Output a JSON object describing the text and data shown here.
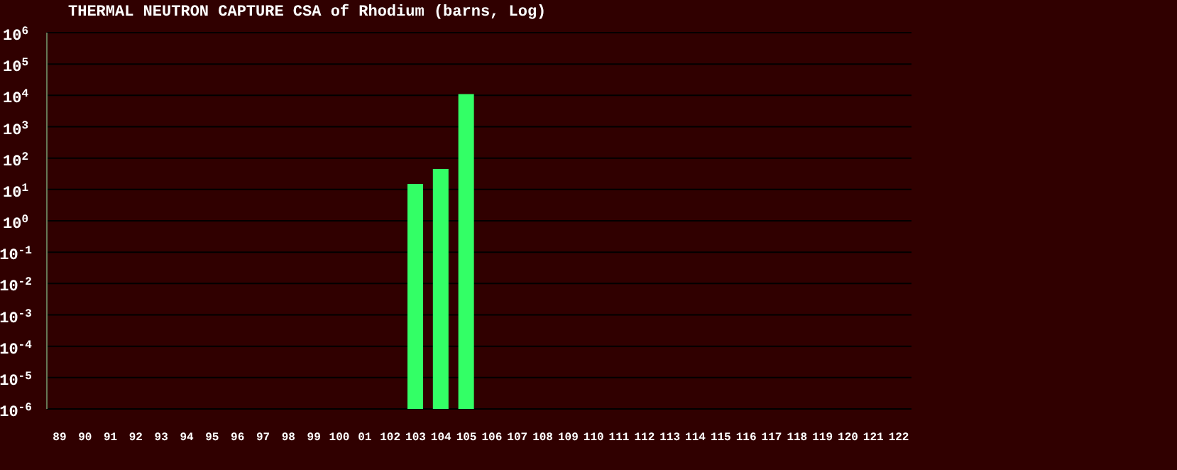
{
  "chart_data": {
    "type": "bar",
    "title": "THERMAL NEUTRON CAPTURE CSA of Rhodium (barns, Log)",
    "categories": [
      "89",
      "90",
      "91",
      "92",
      "93",
      "94",
      "95",
      "96",
      "97",
      "98",
      "99",
      "100",
      "01",
      "102",
      "103",
      "104",
      "105",
      "106",
      "107",
      "108",
      "109",
      "110",
      "111",
      "112",
      "113",
      "114",
      "115",
      "116",
      "117",
      "118",
      "119",
      "120",
      "121",
      "122"
    ],
    "values": [
      null,
      null,
      null,
      null,
      null,
      null,
      null,
      null,
      null,
      null,
      null,
      null,
      null,
      null,
      15,
      45,
      11000,
      null,
      null,
      null,
      null,
      null,
      null,
      null,
      null,
      null,
      null,
      null,
      null,
      null,
      null,
      null,
      null,
      null
    ],
    "color": "#33ff66",
    "log": true,
    "ylim": [
      1e-06,
      1000000
    ],
    "yticks": [
      {
        "value": 1e-06,
        "label": "10$^{-6}$"
      },
      {
        "value": 1e-05,
        "label": "10$^{-5}$"
      },
      {
        "value": 0.0001,
        "label": "10$^{-4}$"
      },
      {
        "value": 0.001,
        "label": "10$^{-3}$"
      },
      {
        "value": 0.01,
        "label": "10$^{-2}$"
      },
      {
        "value": 0.1,
        "label": "10$^{-1}$"
      },
      {
        "value": 1,
        "label": "10$^{0}$"
      },
      {
        "value": 10,
        "label": "10$^{1}$"
      },
      {
        "value": 100,
        "label": "10$^{2}$"
      },
      {
        "value": 1000,
        "label": "10$^{3}$"
      },
      {
        "value": 10000,
        "label": "10$^{4}$"
      },
      {
        "value": 100000,
        "label": "10$^{5}$"
      },
      {
        "value": 1000000,
        "label": "10$^{6}$"
      }
    ],
    "grid": "y"
  }
}
